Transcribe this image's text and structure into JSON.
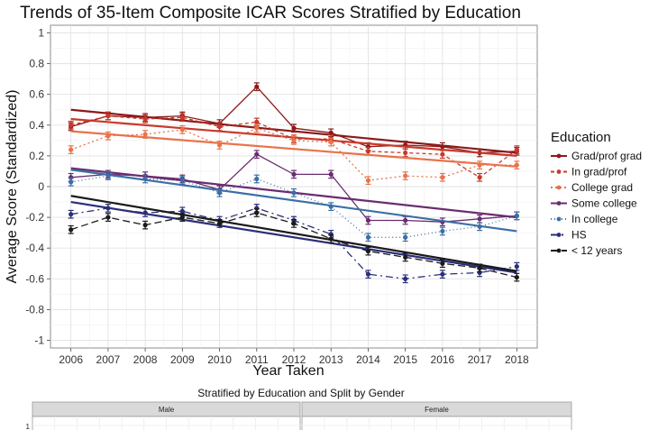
{
  "chart_data": [
    {
      "type": "line",
      "title": "Trends of 35-Item Composite ICAR Scores Stratified by Education",
      "xlabel": "Year Taken",
      "ylabel": "Average Score (Standardized)",
      "x": [
        2006,
        2007,
        2008,
        2009,
        2010,
        2011,
        2012,
        2013,
        2014,
        2015,
        2016,
        2017,
        2018
      ],
      "ylim": [
        -1.05,
        1.05
      ],
      "yticks": [
        1,
        0.8,
        0.6,
        0.4,
        0.2,
        0,
        -0.2,
        -0.4,
        -0.6,
        -0.8,
        -1
      ],
      "ytick_labels": [
        "1",
        "0.8",
        "0.6",
        "0.4",
        "0.2",
        "0",
        "-0.2",
        "-0.4",
        "-0.6",
        "-0.8",
        "-1"
      ],
      "grid": true,
      "legend": {
        "title": "Education",
        "position": "right"
      },
      "series": [
        {
          "name": "Grad/prof grad",
          "color": "#8b1a1a",
          "dash": "solid",
          "values": [
            0.39,
            0.46,
            0.45,
            0.46,
            0.41,
            0.65,
            0.38,
            0.35,
            0.26,
            0.27,
            0.26,
            0.22,
            0.23
          ],
          "trend": [
            0.5,
            0.22
          ]
        },
        {
          "name": "In grad/prof",
          "color": "#c8392b",
          "dash": "4,3",
          "values": [
            0.4,
            0.46,
            0.44,
            0.45,
            0.39,
            0.42,
            0.31,
            0.31,
            0.23,
            0.22,
            0.21,
            0.06,
            0.24
          ],
          "trend": [
            0.44,
            0.2
          ]
        },
        {
          "name": "College grad",
          "color": "#e8734a",
          "dash": "2,3",
          "values": [
            0.24,
            0.33,
            0.34,
            0.37,
            0.27,
            0.38,
            0.3,
            0.29,
            0.04,
            0.07,
            0.06,
            0.14,
            0.14
          ],
          "trend": [
            0.36,
            0.13
          ]
        },
        {
          "name": "Some college",
          "color": "#6a2c70",
          "dash": "solid",
          "values": [
            0.06,
            0.08,
            0.07,
            0.05,
            -0.02,
            0.21,
            0.08,
            0.08,
            -0.22,
            -0.22,
            -0.23,
            -0.21,
            -0.19
          ],
          "trend": [
            0.12,
            -0.2
          ]
        },
        {
          "name": "In college",
          "color": "#3a6fa6",
          "dash": "1,3",
          "values": [
            0.03,
            0.07,
            0.05,
            0.04,
            -0.04,
            0.05,
            -0.04,
            -0.13,
            -0.33,
            -0.33,
            -0.29,
            -0.26,
            -0.19
          ],
          "trend": [
            0.11,
            -0.29
          ]
        },
        {
          "name": "HS",
          "color": "#2a2f7a",
          "dash": "8,4,2,4",
          "values": [
            -0.18,
            -0.14,
            -0.17,
            -0.16,
            -0.22,
            -0.14,
            -0.22,
            -0.31,
            -0.57,
            -0.6,
            -0.57,
            -0.56,
            -0.52
          ],
          "trend": [
            -0.1,
            -0.56
          ]
        },
        {
          "name": "< 12 years",
          "color": "#1a1a1a",
          "dash": "8,4",
          "values": [
            -0.28,
            -0.2,
            -0.25,
            -0.2,
            -0.24,
            -0.17,
            -0.24,
            -0.34,
            -0.42,
            -0.46,
            -0.5,
            -0.53,
            -0.59
          ],
          "trend": [
            -0.06,
            -0.55
          ]
        }
      ]
    },
    {
      "type": "line",
      "title": "Stratified by Education and Split by Gender",
      "panels": [
        "Male",
        "Female"
      ],
      "ytick_first": "1"
    }
  ]
}
